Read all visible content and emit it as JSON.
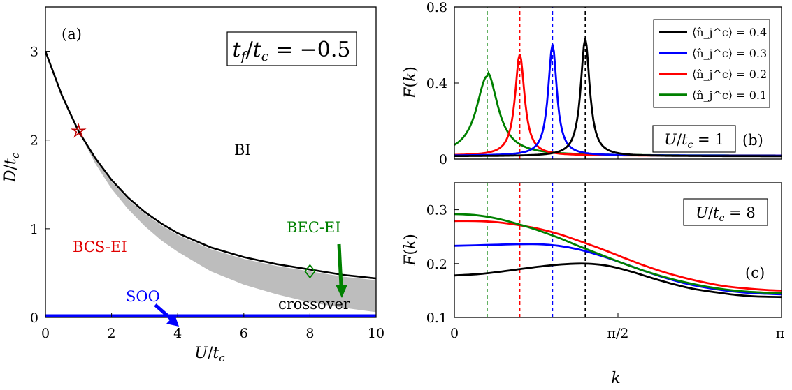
{
  "chart_data": [
    {
      "type": "line",
      "panel": "(a)",
      "boxed_label": "t_f/t_c = −0.5",
      "xlabel": "U/t_c",
      "ylabel": "D/t_c",
      "xlim": [
        0,
        10
      ],
      "ylim": [
        0,
        3.5
      ],
      "xticks": [
        "0",
        "2",
        "4",
        "6",
        "8",
        "10"
      ],
      "yticks": [
        "0",
        "1",
        "2",
        "3"
      ],
      "series": [
        {
          "color": "#000000",
          "x": [
            0,
            0.5,
            1,
            1.5,
            2,
            2.5,
            3,
            3.5,
            4,
            5,
            6,
            7,
            8,
            9,
            10
          ],
          "y": [
            3.0,
            2.5,
            2.1,
            1.8,
            1.55,
            1.35,
            1.19,
            1.06,
            0.95,
            0.79,
            0.68,
            0.6,
            0.54,
            0.48,
            0.44
          ]
        },
        {
          "color": "#0000ff",
          "x": [
            0,
            10
          ],
          "y": [
            0.02,
            0.02
          ]
        }
      ],
      "crossover_band": {
        "upper_x": [
          1,
          1.5,
          2,
          2.5,
          3,
          3.5,
          4,
          5,
          6,
          7,
          8,
          9,
          10
        ],
        "upper_y": [
          2.1,
          1.78,
          1.53,
          1.33,
          1.17,
          1.04,
          0.93,
          0.77,
          0.66,
          0.58,
          0.52,
          0.46,
          0.42
        ],
        "lower_x": [
          1,
          1.5,
          2,
          2.5,
          3,
          3.5,
          4,
          5,
          6,
          7,
          8,
          9,
          10
        ],
        "lower_y": [
          2.1,
          1.74,
          1.45,
          1.22,
          1.03,
          0.87,
          0.74,
          0.52,
          0.37,
          0.26,
          0.17,
          0.11,
          0.06
        ],
        "color": "#bdbdbd"
      },
      "markers": [
        {
          "shape": "star",
          "x": 1,
          "y": 2.1,
          "color": "#c00000"
        },
        {
          "shape": "diamond",
          "x": 8,
          "y": 0.52,
          "color": "#008000"
        }
      ],
      "labels": [
        {
          "text": "BI",
          "color": "#000000"
        },
        {
          "text": "BCS-EI",
          "color": "#e00000"
        },
        {
          "text": "BEC-EI",
          "color": "#008000"
        },
        {
          "text": "SOO",
          "color": "#0000ff"
        },
        {
          "text": "crossover",
          "color": "#000000"
        }
      ]
    },
    {
      "type": "line",
      "panel": "(b)",
      "boxed_label": "U/t_c = 1",
      "xlabel": "",
      "ylabel": "F(k)",
      "xlim": [
        0,
        3.1416
      ],
      "ylim": [
        0,
        0.8
      ],
      "yticks": [
        "0",
        "0.4",
        "0.8"
      ],
      "legend": "top-right",
      "series": [
        {
          "name": "⟨n̂_j^c⟩ = 0.4",
          "color": "#000000",
          "peak": 1.2566,
          "amp": 0.62,
          "width": 0.052,
          "base": 0.015
        },
        {
          "name": "⟨n̂_j^c⟩ = 0.3",
          "color": "#0000ff",
          "peak": 0.9425,
          "amp": 0.585,
          "width": 0.05,
          "base": 0.018
        },
        {
          "name": "⟨n̂_j^c⟩ = 0.2",
          "color": "#ff0000",
          "peak": 0.6283,
          "amp": 0.535,
          "width": 0.055,
          "base": 0.018
        },
        {
          "name": "⟨n̂_j^c⟩ = 0.1",
          "color": "#008000",
          "peak": 0.3142,
          "amp": 0.44,
          "width": 0.125,
          "base": 0.018
        }
      ],
      "vlines": [
        {
          "x": 1.2566,
          "color": "#000000"
        },
        {
          "x": 0.9425,
          "color": "#0000ff"
        },
        {
          "x": 0.6283,
          "color": "#ff0000"
        },
        {
          "x": 0.3142,
          "color": "#008000"
        }
      ]
    },
    {
      "type": "line",
      "panel": "(c)",
      "boxed_label": "U/t_c = 8",
      "xlabel": "k",
      "ylabel": "F(k)",
      "xlim": [
        0,
        3.1416
      ],
      "ylim": [
        0.1,
        0.35
      ],
      "xticks": [
        "0",
        "π/2",
        "π"
      ],
      "yticks": [
        "0.1",
        "0.2",
        "0.3"
      ],
      "series": [
        {
          "color": "#000000",
          "x": [
            0,
            0.2,
            0.4,
            0.6,
            0.8,
            1.0,
            1.2,
            1.35,
            1.5,
            1.7,
            1.9,
            2.1,
            2.3,
            2.5,
            2.7,
            2.9,
            3.14
          ],
          "y": [
            0.178,
            0.18,
            0.184,
            0.189,
            0.194,
            0.198,
            0.2,
            0.199,
            0.195,
            0.185,
            0.173,
            0.162,
            0.153,
            0.147,
            0.142,
            0.139,
            0.138
          ]
        },
        {
          "color": "#0000ff",
          "x": [
            0,
            0.2,
            0.4,
            0.6,
            0.8,
            1.0,
            1.2,
            1.4,
            1.6,
            1.8,
            2.0,
            2.2,
            2.4,
            2.6,
            2.8,
            3.0,
            3.14
          ],
          "y": [
            0.233,
            0.234,
            0.235,
            0.236,
            0.236,
            0.233,
            0.226,
            0.215,
            0.202,
            0.188,
            0.175,
            0.164,
            0.156,
            0.15,
            0.146,
            0.144,
            0.143
          ]
        },
        {
          "color": "#ff0000",
          "x": [
            0,
            0.2,
            0.4,
            0.6,
            0.8,
            1.0,
            1.2,
            1.4,
            1.6,
            1.8,
            2.0,
            2.2,
            2.4,
            2.6,
            2.8,
            3.0,
            3.14
          ],
          "y": [
            0.279,
            0.279,
            0.277,
            0.272,
            0.265,
            0.255,
            0.242,
            0.228,
            0.213,
            0.198,
            0.185,
            0.174,
            0.165,
            0.158,
            0.154,
            0.151,
            0.15
          ]
        },
        {
          "color": "#008000",
          "x": [
            0,
            0.2,
            0.4,
            0.6,
            0.8,
            1.0,
            1.2,
            1.4,
            1.6,
            1.8,
            2.0,
            2.2,
            2.4,
            2.6,
            2.8,
            3.0,
            3.14
          ],
          "y": [
            0.292,
            0.29,
            0.284,
            0.274,
            0.262,
            0.248,
            0.232,
            0.217,
            0.202,
            0.188,
            0.176,
            0.166,
            0.158,
            0.152,
            0.148,
            0.146,
            0.145
          ]
        }
      ],
      "vlines": [
        {
          "x": 1.2566,
          "color": "#000000"
        },
        {
          "x": 0.9425,
          "color": "#0000ff"
        },
        {
          "x": 0.6283,
          "color": "#ff0000"
        },
        {
          "x": 0.3142,
          "color": "#008000"
        }
      ]
    }
  ]
}
